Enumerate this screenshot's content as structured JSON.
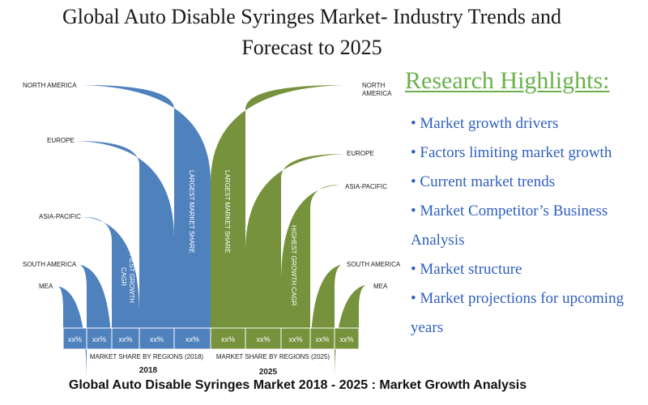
{
  "page": {
    "title_line1": "Global Auto Disable Syringes Market- Industry Trends and",
    "title_line2": "Forecast to 2025",
    "footer": "Global Auto Disable Syringes Market 2018 - 2025 : Market Growth Analysis"
  },
  "highlights": {
    "title": "Research Highlights:",
    "items": [
      "• Market growth drivers",
      "• Factors limiting market growth",
      "• Current market trends",
      "• Market Competitor’s Business Analysis",
      "• Market structure",
      "• Market projections for upcoming years"
    ]
  },
  "chart_data": {
    "type": "bar",
    "colors": {
      "2018": "#4f81bd",
      "2025": "#76923c"
    },
    "regions_2018": [
      "MEA",
      "SOUTH AMERICA",
      "ASIA-PACIFIC",
      "EUROPE",
      "NORTH AMERICA"
    ],
    "regions_2025": [
      "NORTH AMERICA",
      "EUROPE",
      "ASIA-PACIFIC",
      "SOUTH AMERICA",
      "MEA"
    ],
    "region_labels_2025": [
      "NORTH AMERICA",
      "EUROPE",
      "ASIA-PACIFIC",
      "SOUTH AMERICA",
      "MEA"
    ],
    "values_2018": [
      "xx%",
      "xx%",
      "xx%",
      "xx%",
      "xx%"
    ],
    "values_2025": [
      "xx%",
      "xx%",
      "xx%",
      "xx%",
      "xx%"
    ],
    "annotations_2018": {
      "largest": "LARGEST MARKET SHARE",
      "highest_growth": "HIGHEST GROWTH CAGR"
    },
    "annotations_2025": {
      "largest": "LARGEST MARKET SHARE",
      "highest_growth": "HIGHEST GROWTH CAGR"
    },
    "xlabel_2018": "MARKET SHARE BY REGIONS (2018)",
    "xlabel_2025": "MARKET SHARE BY REGIONS (2025)",
    "year_2018": "2018",
    "year_2025": "2025"
  }
}
